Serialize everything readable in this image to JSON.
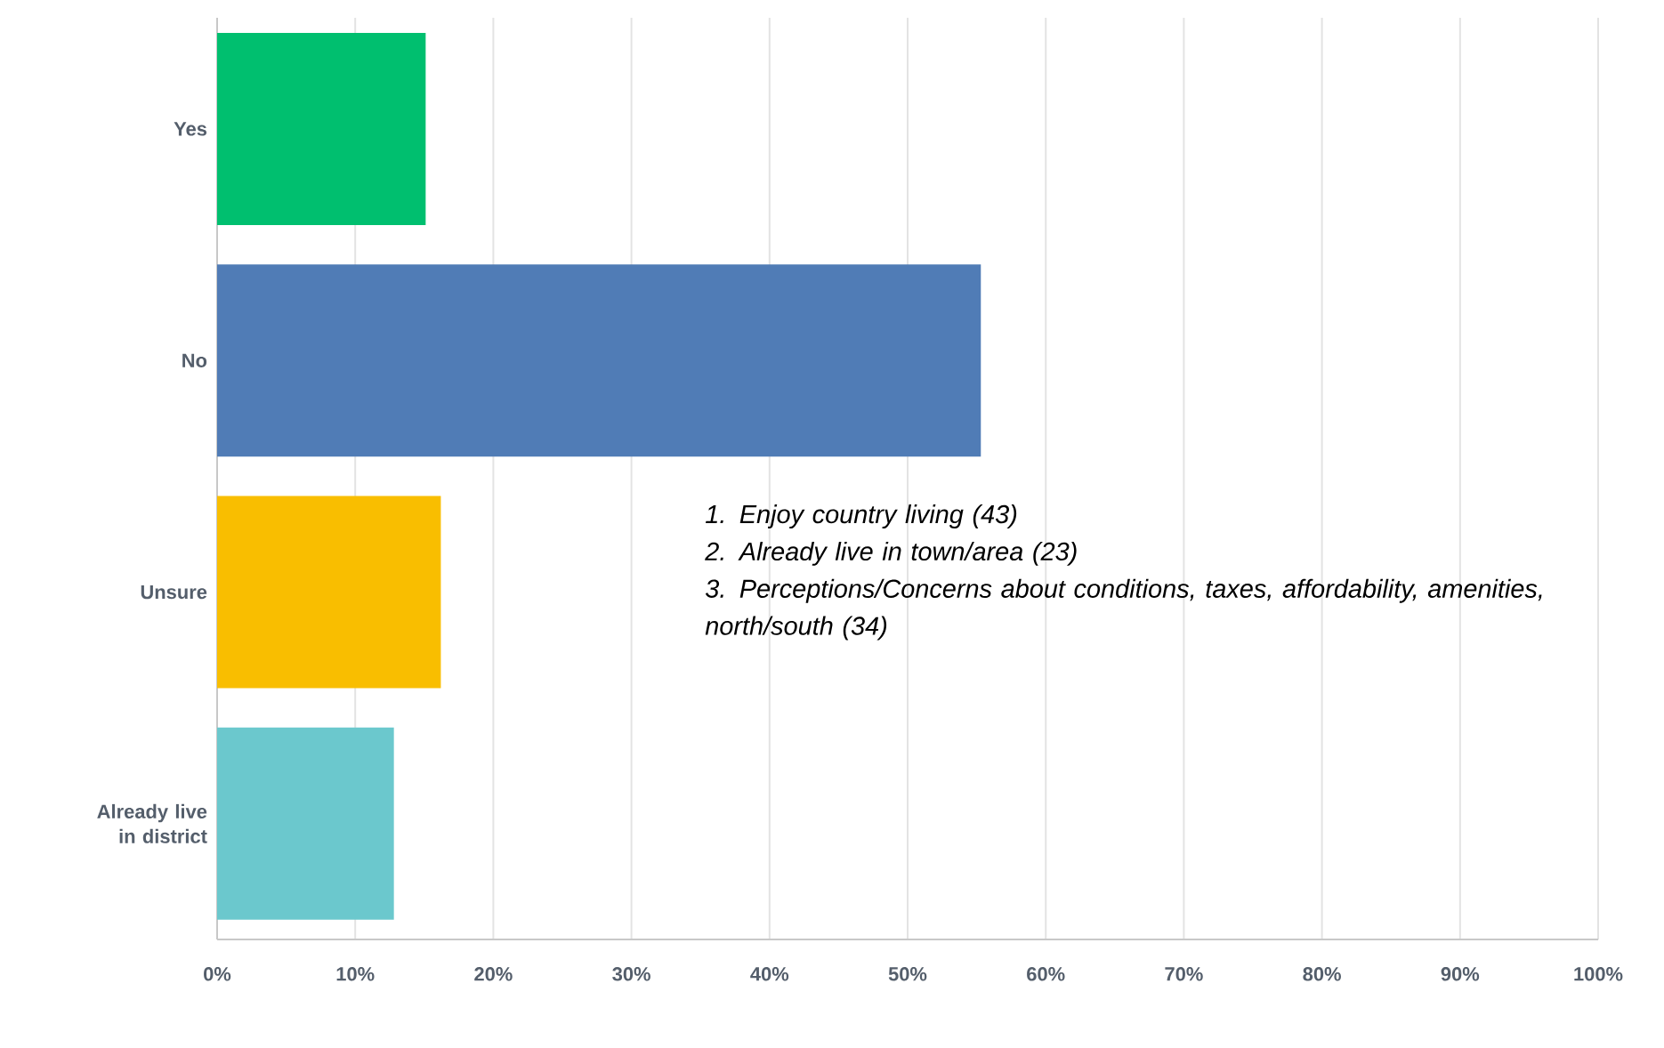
{
  "chart_data": {
    "type": "bar",
    "orientation": "horizontal",
    "categories": [
      "Yes",
      "No",
      "Unsure",
      "Already live in district"
    ],
    "values": [
      15.1,
      55.3,
      16.2,
      12.8
    ],
    "colors": [
      "#00bf6f",
      "#507cb6",
      "#f9be00",
      "#6bc8cd"
    ],
    "xlim": [
      0,
      100
    ],
    "xticks": [
      {
        "value": 0,
        "label": "0%"
      },
      {
        "value": 10,
        "label": "10%"
      },
      {
        "value": 20,
        "label": "20%"
      },
      {
        "value": 30,
        "label": "30%"
      },
      {
        "value": 40,
        "label": "40%"
      },
      {
        "value": 50,
        "label": "50%"
      },
      {
        "value": 60,
        "label": "60%"
      },
      {
        "value": 70,
        "label": "70%"
      },
      {
        "value": 80,
        "label": "80%"
      },
      {
        "value": 90,
        "label": "90%"
      },
      {
        "value": 100,
        "label": "100%"
      }
    ],
    "grid": "x",
    "annotations": [
      "1.  Enjoy country living (43)",
      "2.  Already live in town/area (23)",
      "3.  Perceptions/Concerns about conditions, taxes, affordability, amenities, north/south (34)"
    ]
  }
}
